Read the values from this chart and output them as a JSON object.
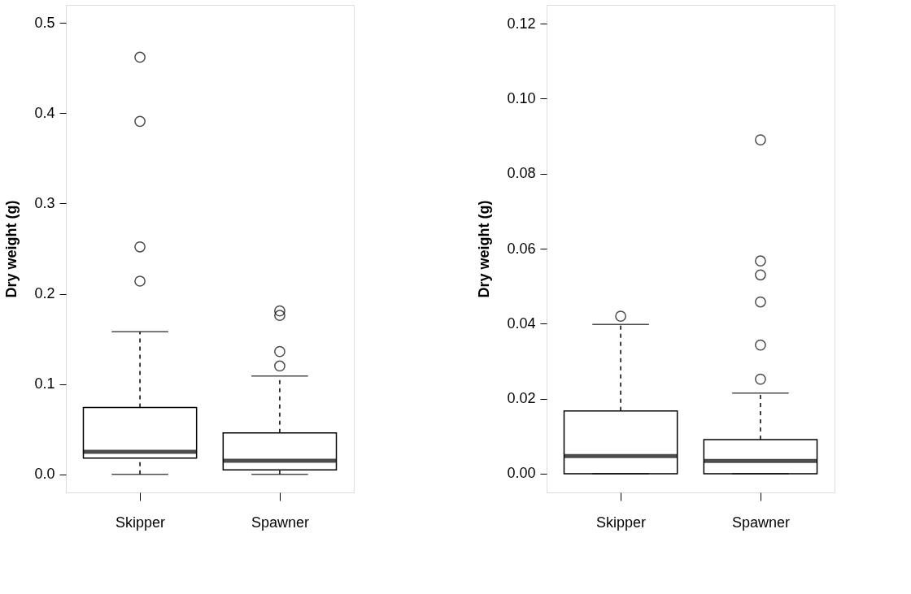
{
  "chart_data": [
    {
      "type": "box",
      "ylabel": "Dry weight (g)",
      "categories": [
        "Skipper",
        "Spawner"
      ],
      "boxes": [
        {
          "low": 0.0,
          "q1": 0.018,
          "median": 0.025,
          "q3": 0.074,
          "high": 0.158,
          "outliers": [
            0.462,
            0.391,
            0.252,
            0.214
          ]
        },
        {
          "low": 0.0,
          "q1": 0.005,
          "median": 0.015,
          "q3": 0.046,
          "high": 0.109,
          "outliers": [
            0.181,
            0.176,
            0.136,
            0.12
          ]
        }
      ],
      "ylim": [
        -0.02,
        0.52
      ],
      "yticks": [
        {
          "value": 0,
          "label": "0.0"
        },
        0.1,
        0.2,
        0.3,
        0.4,
        0.5
      ],
      "grid": false
    },
    {
      "type": "box",
      "ylabel": "Dry weight (g)",
      "categories": [
        "Skipper",
        "Spawner"
      ],
      "boxes": [
        {
          "low": 0.0,
          "q1": 0.0,
          "median": 0.0047,
          "q3": 0.0167,
          "high": 0.0398,
          "outliers": [
            0.042
          ]
        },
        {
          "low": 0.0,
          "q1": 0.0,
          "median": 0.0034,
          "q3": 0.0091,
          "high": 0.0215,
          "outliers": [
            0.089,
            0.0567,
            0.053,
            0.0458,
            0.0343,
            0.0252
          ]
        }
      ],
      "ylim": [
        -0.005,
        0.125
      ],
      "yticks": [
        {
          "value": 0,
          "label": "0.00"
        },
        {
          "value": 0.02,
          "label": "0.02"
        },
        {
          "value": 0.04,
          "label": "0.04"
        },
        {
          "value": 0.06,
          "label": "0.06"
        },
        {
          "value": 0.08,
          "label": "0.08"
        },
        {
          "value": 0.1,
          "label": "0.10"
        },
        {
          "value": 0.12,
          "label": "0.12"
        }
      ],
      "grid": false
    }
  ]
}
